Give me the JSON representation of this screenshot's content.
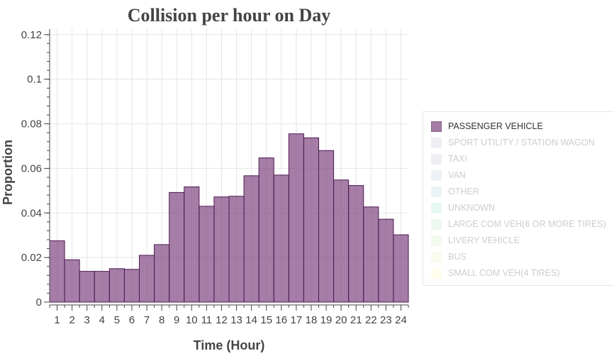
{
  "chart_data": {
    "type": "bar",
    "title": "Collision per hour on Day",
    "xlabel": "Time (Hour)",
    "ylabel": "Proportion",
    "categories": [
      "1",
      "2",
      "3",
      "4",
      "5",
      "6",
      "7",
      "8",
      "9",
      "10",
      "11",
      "12",
      "13",
      "14",
      "15",
      "16",
      "17",
      "18",
      "19",
      "20",
      "21",
      "22",
      "23",
      "24"
    ],
    "series": [
      {
        "name": "PASSENGER VEHICLE",
        "color": "#7b3f7d",
        "values": [
          0.0275,
          0.019,
          0.0138,
          0.0138,
          0.015,
          0.0147,
          0.021,
          0.0258,
          0.0492,
          0.0517,
          0.043,
          0.0472,
          0.0475,
          0.0567,
          0.0647,
          0.057,
          0.0755,
          0.0737,
          0.068,
          0.0548,
          0.0523,
          0.0427,
          0.0372,
          0.0302
        ]
      }
    ],
    "ylim": [
      0,
      0.1225
    ],
    "y_ticks": [
      "0",
      "0.02",
      "0.04",
      "0.06",
      "0.08",
      "0.1",
      "0.12"
    ],
    "y_tick_values": [
      0,
      0.02,
      0.04,
      0.06,
      0.08,
      0.1,
      0.12
    ],
    "grid": true,
    "legend_position": "right"
  },
  "legend": {
    "items": [
      {
        "label": "PASSENGER VEHICLE",
        "color": "#7b3f7d",
        "active": true
      },
      {
        "label": "SPORT UTILITY / STATION WAGON",
        "color": "#9f84bd",
        "active": false
      },
      {
        "label": "TAXI",
        "color": "#8a8fb0",
        "active": false
      },
      {
        "label": "VAN",
        "color": "#7fa4c4",
        "active": false
      },
      {
        "label": "OTHER",
        "color": "#6db3c6",
        "active": false
      },
      {
        "label": "UNKNOWN",
        "color": "#5cc6b5",
        "active": false
      },
      {
        "label": "LARGE COM VEH(6 OR MORE TIRES)",
        "color": "#7fd39a",
        "active": false
      },
      {
        "label": "LIVERY VEHICLE",
        "color": "#a3dc8a",
        "active": false
      },
      {
        "label": "BUS",
        "color": "#d4e48a",
        "active": false
      },
      {
        "label": "SMALL COM VEH(4 TIRES)",
        "color": "#f6ee8e",
        "active": false
      }
    ]
  }
}
